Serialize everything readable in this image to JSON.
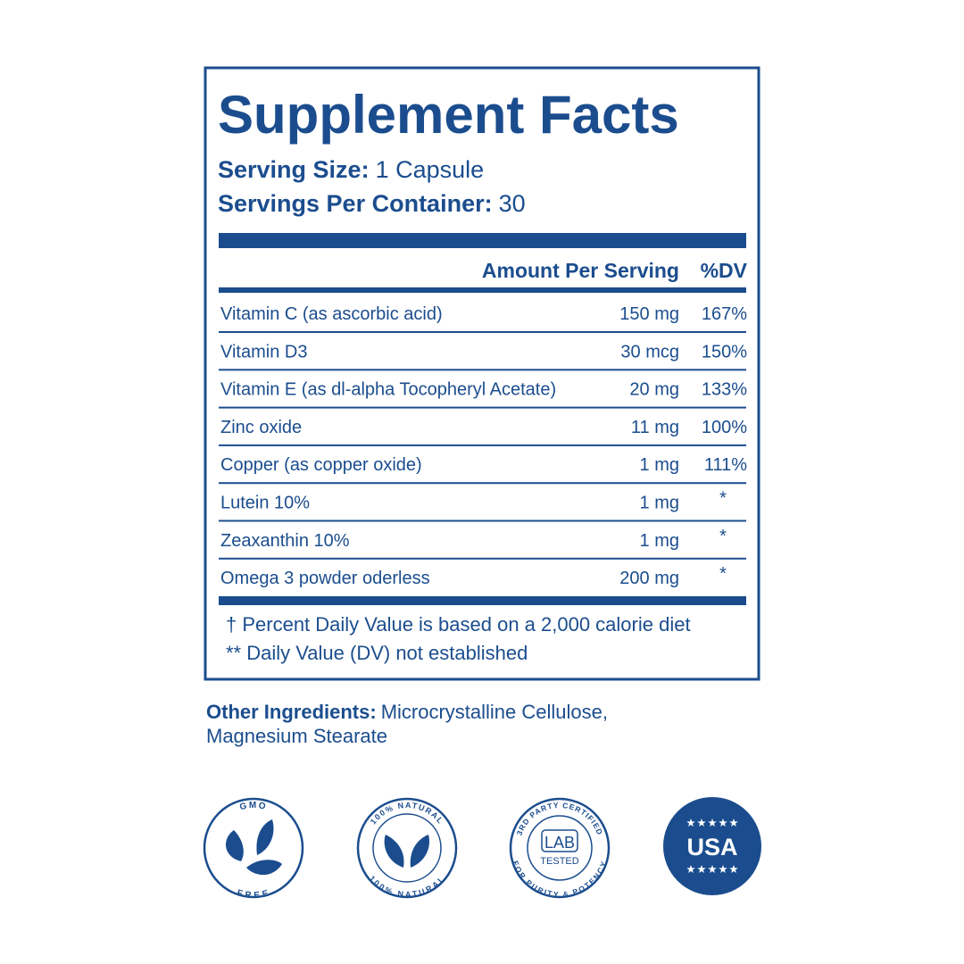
{
  "label": {
    "title": "Supplement Facts",
    "serving_size": {
      "label": "Serving Size:",
      "value": "1 Capsule"
    },
    "servings_per_container": {
      "label": "Servings Per Container:",
      "value": "30"
    },
    "header": {
      "amount": "Amount Per Serving",
      "dv": "%DV"
    },
    "rows": [
      [
        "Vitamin C (as ascorbic acid)",
        "150 mg",
        "167%"
      ],
      [
        "Vitamin D3",
        "30 mcg",
        "150%"
      ],
      [
        "Vitamin E (as dl-alpha Tocopheryl Acetate)",
        "20 mg",
        "133%"
      ],
      [
        "Zinc oxide",
        "11 mg",
        "100%"
      ],
      [
        "Copper (as copper oxide)",
        "1 mg",
        "111%"
      ],
      [
        "Lutein 10%",
        "1 mg",
        "*"
      ],
      [
        "Zeaxanthin 10%",
        "1 mg",
        "*"
      ],
      [
        "Omega 3 powder oderless",
        "200 mg",
        "*"
      ]
    ],
    "footnotes": [
      "† Percent Daily Value is based on a 2,000 calorie diet",
      "** Daily Value (DV) not established"
    ]
  },
  "other_ingredients": {
    "label": "Other Ingredients:",
    "lines": [
      "Microcrystalline Cellulose,",
      "Magnesium Stearate"
    ]
  },
  "badges": [
    {
      "top": "GMO",
      "bottom": "FREE"
    },
    {
      "top": "100% NATURAL",
      "bottom": "100% NATURAL"
    },
    {
      "top": "3RD PARTY CERTIFIED",
      "bottom": "FOR PURITY & POTENCY",
      "center": [
        "LAB",
        "TESTED"
      ]
    },
    {
      "center": "USA"
    }
  ]
}
